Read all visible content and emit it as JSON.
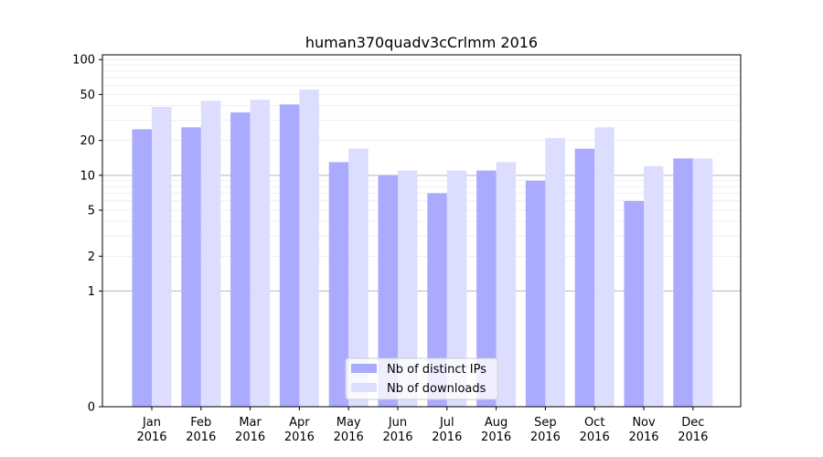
{
  "chart_data": {
    "type": "bar",
    "title": "human370quadv3cCrlmm 2016",
    "xlabel": "",
    "ylabel": "",
    "yscale": "symlog",
    "ylim": [
      0,
      110
    ],
    "yticks": [
      0,
      1,
      2,
      5,
      10,
      20,
      50,
      100
    ],
    "grid": "y",
    "legend_position": "bottom-center",
    "categories": [
      {
        "month": "Jan",
        "year": "2016"
      },
      {
        "month": "Feb",
        "year": "2016"
      },
      {
        "month": "Mar",
        "year": "2016"
      },
      {
        "month": "Apr",
        "year": "2016"
      },
      {
        "month": "May",
        "year": "2016"
      },
      {
        "month": "Jun",
        "year": "2016"
      },
      {
        "month": "Jul",
        "year": "2016"
      },
      {
        "month": "Aug",
        "year": "2016"
      },
      {
        "month": "Sep",
        "year": "2016"
      },
      {
        "month": "Oct",
        "year": "2016"
      },
      {
        "month": "Nov",
        "year": "2016"
      },
      {
        "month": "Dec",
        "year": "2016"
      }
    ],
    "series": [
      {
        "name": "Nb of distinct IPs",
        "color": "#aaaaff",
        "values": [
          25,
          26,
          35,
          41,
          13,
          10,
          7,
          11,
          9,
          17,
          6,
          14
        ]
      },
      {
        "name": "Nb of downloads",
        "color": "#ddddff",
        "values": [
          39,
          44,
          45,
          55,
          17,
          11,
          11,
          13,
          21,
          26,
          12,
          14
        ]
      }
    ]
  }
}
